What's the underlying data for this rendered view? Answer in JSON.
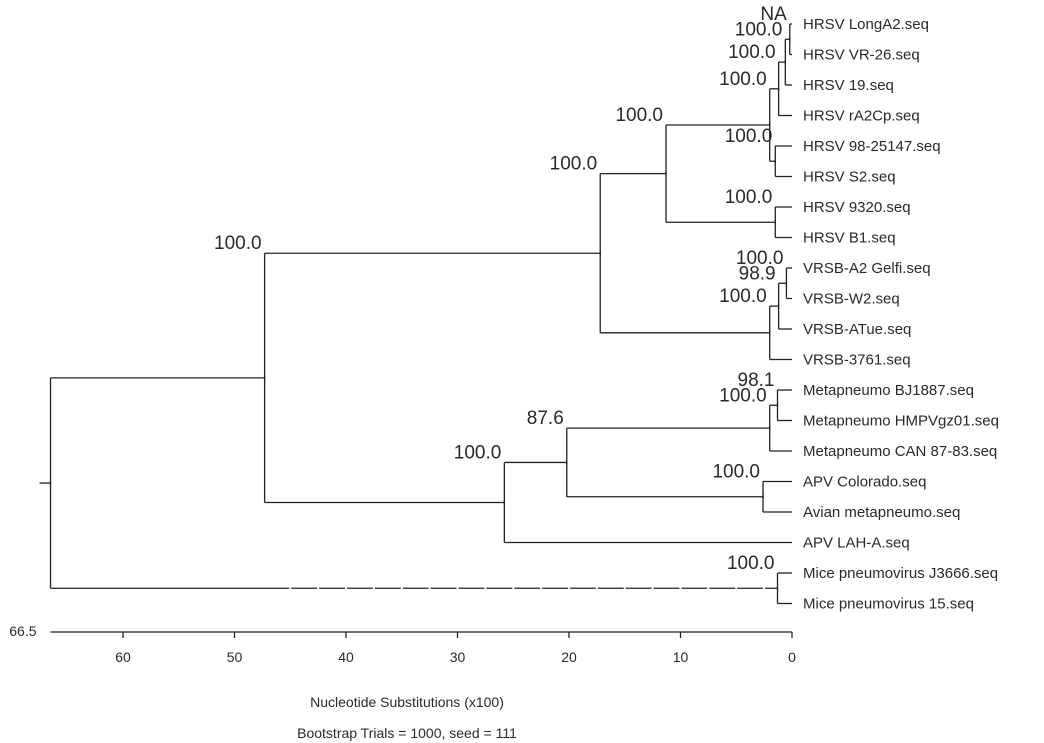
{
  "chart_data": {
    "type": "phylogenetic-tree",
    "orientation": "root-left, leaves-right",
    "x_axis": {
      "label": "Nucleotide Substitutions (x100)",
      "range": [
        66.5,
        0
      ],
      "ticks": [
        60,
        50,
        40,
        30,
        20,
        10,
        0
      ],
      "start_label": "66.5"
    },
    "footer": "Bootstrap Trials = 1000, seed = 111",
    "leaves": [
      "HRSV LongA2.seq",
      "HRSV VR-26.seq",
      "HRSV 19.seq",
      "HRSV rA2Cp.seq",
      "HRSV 98-25147.seq",
      "HRSV S2.seq",
      "HRSV 9320.seq",
      "HRSV B1.seq",
      "VRSB-A2 Gelfi.seq",
      "VRSB-W2.seq",
      "VRSB-ATue.seq",
      "VRSB-3761.seq",
      "Metapneumo BJ1887.seq",
      "Metapneumo HMPVgz01.seq",
      "Metapneumo CAN 87-83.seq",
      "APV Colorado.seq",
      "Avian metapneumo.seq",
      "APV LAH-A.seq",
      "Mice pneumovirus J3666.seq",
      "Mice pneumovirus 15.seq"
    ],
    "nodes": [
      {
        "id": "root",
        "x": 66.5,
        "parent": null,
        "children": [
          "n_pneumo_meta",
          "n_mice"
        ],
        "bootstrap": ""
      },
      {
        "id": "n_pneumo_meta",
        "x": 47.3,
        "parent": "root",
        "children": [
          "n_pneumo",
          "n_meta"
        ],
        "bootstrap": "100.0"
      },
      {
        "id": "n_pneumo",
        "x": 17.2,
        "parent": "n_pneumo_meta",
        "children": [
          "n_hrsv",
          "n_vrsb"
        ],
        "bootstrap": "100.0"
      },
      {
        "id": "n_hrsv",
        "x": 11.3,
        "parent": "n_pneumo",
        "children": [
          "n_hrsv_a",
          "n_hrsv_b"
        ],
        "bootstrap": "100.0"
      },
      {
        "id": "n_hrsv_a",
        "x": 2.0,
        "parent": "n_hrsv",
        "children": [
          "n_a1",
          "n_a2"
        ],
        "bootstrap": "100.0"
      },
      {
        "id": "n_a1",
        "x": 1.2,
        "parent": "n_hrsv_a",
        "children": [
          "n_a1a",
          "HRSV rA2Cp.seq"
        ],
        "bootstrap": "100.0"
      },
      {
        "id": "n_a1a",
        "x": 0.6,
        "parent": "n_a1",
        "children": [
          "n_a1b",
          "HRSV 19.seq"
        ],
        "bootstrap": "100.0"
      },
      {
        "id": "n_a1b",
        "x": 0.2,
        "parent": "n_a1a",
        "children": [
          "HRSV LongA2.seq",
          "HRSV VR-26.seq"
        ],
        "bootstrap": "NA"
      },
      {
        "id": "n_a2",
        "x": 1.5,
        "parent": "n_hrsv_a",
        "children": [
          "HRSV 98-25147.seq",
          "HRSV S2.seq"
        ],
        "bootstrap": "100.0"
      },
      {
        "id": "n_hrsv_b",
        "x": 1.5,
        "parent": "n_hrsv",
        "children": [
          "HRSV 9320.seq",
          "HRSV B1.seq"
        ],
        "bootstrap": "100.0"
      },
      {
        "id": "n_vrsb",
        "x": 2.0,
        "parent": "n_pneumo",
        "children": [
          "n_vrsb1",
          "VRSB-3761.seq"
        ],
        "bootstrap": "100.0"
      },
      {
        "id": "n_vrsb1",
        "x": 1.2,
        "parent": "n_vrsb",
        "children": [
          "n_vrsb2",
          "VRSB-ATue.seq"
        ],
        "bootstrap": "98.9"
      },
      {
        "id": "n_vrsb2",
        "x": 0.5,
        "parent": "n_vrsb1",
        "children": [
          "VRSB-A2 Gelfi.seq",
          "VRSB-W2.seq"
        ],
        "bootstrap": "100.0"
      },
      {
        "id": "n_meta",
        "x": 25.8,
        "parent": "n_pneumo_meta",
        "children": [
          "n_meta1",
          "APV LAH-A.seq"
        ],
        "bootstrap": "100.0"
      },
      {
        "id": "n_meta1",
        "x": 20.2,
        "parent": "n_meta",
        "children": [
          "n_hmpv",
          "n_apv"
        ],
        "bootstrap": "87.6"
      },
      {
        "id": "n_hmpv",
        "x": 2.0,
        "parent": "n_meta1",
        "children": [
          "n_hmpv1",
          "Metapneumo CAN 87-83.seq"
        ],
        "bootstrap": "100.0"
      },
      {
        "id": "n_hmpv1",
        "x": 1.3,
        "parent": "n_hmpv",
        "children": [
          "Metapneumo BJ1887.seq",
          "Metapneumo HMPVgz01.seq"
        ],
        "bootstrap": "98.1"
      },
      {
        "id": "n_apv",
        "x": 2.6,
        "parent": "n_meta1",
        "children": [
          "APV Colorado.seq",
          "Avian metapneumo.seq"
        ],
        "bootstrap": "100.0"
      },
      {
        "id": "n_mice",
        "x": 1.3,
        "parent": "root",
        "children": [
          "Mice pneumovirus J3666.seq",
          "Mice pneumovirus 15.seq"
        ],
        "bootstrap": "100.0"
      }
    ]
  }
}
